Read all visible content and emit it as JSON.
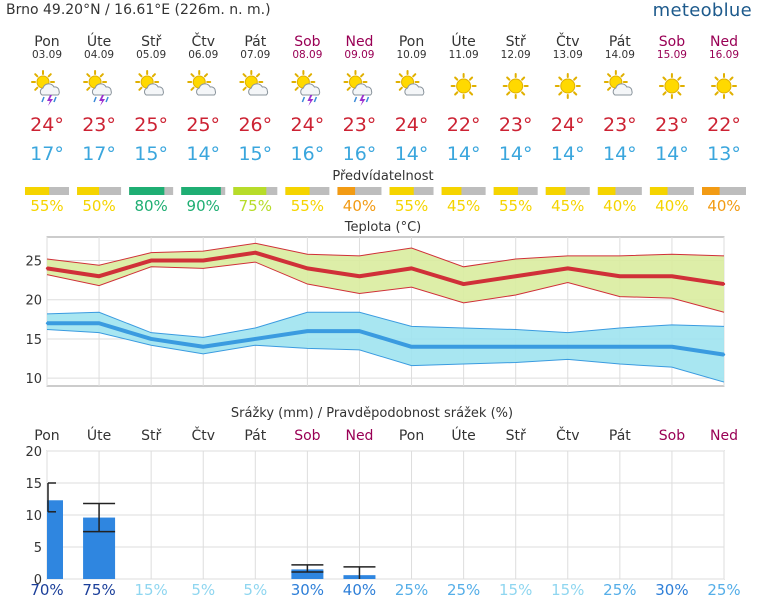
{
  "header": {
    "location": "Brno  49.20°N / 16.61°E (226m. n. m.)",
    "brand": "meteoblue"
  },
  "days": [
    {
      "name": "Pon",
      "date": "03.09",
      "weekend": false,
      "icon": "sun-cloud-thunder-rain-icon",
      "tmax": "24°",
      "tmin": "17°",
      "predictability": "55%",
      "pred_value": 55,
      "pred_color": "#f5d400",
      "precip_prob": "70%"
    },
    {
      "name": "Úte",
      "date": "04.09",
      "weekend": false,
      "icon": "sun-cloud-thunder-rain-icon",
      "tmax": "23°",
      "tmin": "17°",
      "predictability": "50%",
      "pred_value": 50,
      "pred_color": "#f5d400",
      "precip_prob": "75%"
    },
    {
      "name": "Stř",
      "date": "05.09",
      "weekend": false,
      "icon": "sun-cloud-icon",
      "tmax": "25°",
      "tmin": "15°",
      "predictability": "80%",
      "pred_value": 80,
      "pred_color": "#1fae73",
      "precip_prob": "15%"
    },
    {
      "name": "Čtv",
      "date": "06.09",
      "weekend": false,
      "icon": "sun-cloud-icon",
      "tmax": "25°",
      "tmin": "14°",
      "predictability": "90%",
      "pred_value": 90,
      "pred_color": "#1fae73",
      "precip_prob": "5%"
    },
    {
      "name": "Pát",
      "date": "07.09",
      "weekend": false,
      "icon": "sun-cloud-icon",
      "tmax": "26°",
      "tmin": "15°",
      "predictability": "75%",
      "pred_value": 75,
      "pred_color": "#b7dc2a",
      "precip_prob": "5%"
    },
    {
      "name": "Sob",
      "date": "08.09",
      "weekend": true,
      "icon": "sun-cloud-thunder-rain-icon",
      "tmax": "24°",
      "tmin": "16°",
      "predictability": "55%",
      "pred_value": 55,
      "pred_color": "#f5d400",
      "precip_prob": "30%"
    },
    {
      "name": "Ned",
      "date": "09.09",
      "weekend": true,
      "icon": "sun-cloud-thunder-rain-icon",
      "tmax": "23°",
      "tmin": "16°",
      "predictability": "40%",
      "pred_value": 40,
      "pred_color": "#f29b14",
      "precip_prob": "40%"
    },
    {
      "name": "Pon",
      "date": "10.09",
      "weekend": false,
      "icon": "sun-cloud-icon",
      "tmax": "24°",
      "tmin": "14°",
      "predictability": "55%",
      "pred_value": 55,
      "pred_color": "#f5d400",
      "precip_prob": "25%"
    },
    {
      "name": "Úte",
      "date": "11.09",
      "weekend": false,
      "icon": "sun-icon",
      "tmax": "22°",
      "tmin": "14°",
      "predictability": "45%",
      "pred_value": 45,
      "pred_color": "#f5d400",
      "precip_prob": "25%"
    },
    {
      "name": "Stř",
      "date": "12.09",
      "weekend": false,
      "icon": "sun-icon",
      "tmax": "23°",
      "tmin": "14°",
      "predictability": "55%",
      "pred_value": 55,
      "pred_color": "#f5d400",
      "precip_prob": "15%"
    },
    {
      "name": "Čtv",
      "date": "13.09",
      "weekend": false,
      "icon": "sun-icon",
      "tmax": "24°",
      "tmin": "14°",
      "predictability": "45%",
      "pred_value": 45,
      "pred_color": "#f5d400",
      "precip_prob": "15%"
    },
    {
      "name": "Pát",
      "date": "14.09",
      "weekend": false,
      "icon": "sun-cloud-icon",
      "tmax": "23°",
      "tmin": "14°",
      "predictability": "40%",
      "pred_value": 40,
      "pred_color": "#f5d400",
      "precip_prob": "25%"
    },
    {
      "name": "Sob",
      "date": "15.09",
      "weekend": true,
      "icon": "sun-icon",
      "tmax": "23°",
      "tmin": "14°",
      "predictability": "40%",
      "pred_value": 40,
      "pred_color": "#f5d400",
      "precip_prob": "30%"
    },
    {
      "name": "Ned",
      "date": "16.09",
      "weekend": true,
      "icon": "sun-icon",
      "tmax": "22°",
      "tmin": "13°",
      "predictability": "40%",
      "pred_value": 40,
      "pred_color": "#f29b14",
      "precip_prob": "25%"
    }
  ],
  "colors": {
    "tmax_text": "#cc2233",
    "tmin_text": "#3aa6dd",
    "weekend_text": "#990055",
    "temp_max_line": "#d03038",
    "temp_max_band": "#d9ec9e",
    "temp_min_line": "#3a9be0",
    "temp_min_band": "#9fe3f0",
    "precip_bar": "#2f86e0",
    "pred_rest": "#bdbdbd"
  },
  "sections": {
    "predictability_title": "Předvídatelnost",
    "temperature_title": "Teplota (°C)",
    "precip_title": "Srážky (mm) / Pravděpodobnost srážek (%)"
  },
  "chart_data": [
    {
      "type": "line",
      "title": "Teplota (°C)",
      "x": [
        "03.09",
        "04.09",
        "05.09",
        "06.09",
        "07.09",
        "08.09",
        "09.09",
        "10.09",
        "11.09",
        "12.09",
        "13.09",
        "14.09",
        "15.09",
        "16.09"
      ],
      "ylim": [
        9,
        28
      ],
      "yticks": [
        "10",
        "15",
        "20",
        "25"
      ],
      "series": [
        {
          "key": "tmax",
          "values": [
            24,
            23,
            25,
            25,
            26,
            24,
            23,
            24,
            22,
            23,
            24,
            23,
            23,
            22
          ],
          "upper": [
            25.2,
            24.4,
            26,
            26.2,
            27.2,
            25.8,
            25.6,
            26.6,
            24.2,
            25.2,
            25.6,
            25.6,
            25.8,
            25.6
          ],
          "lower": [
            23.2,
            21.8,
            24.2,
            24,
            24.8,
            22,
            20.8,
            21.6,
            19.6,
            20.6,
            22.2,
            20.4,
            20.2,
            18.4
          ]
        },
        {
          "key": "tmin",
          "values": [
            17,
            17,
            15,
            14,
            15,
            16,
            16,
            14,
            14,
            14,
            14,
            14,
            14,
            13
          ],
          "upper": [
            18.2,
            18.4,
            15.8,
            15.2,
            16.4,
            18.4,
            18.4,
            16.6,
            16.4,
            16.2,
            15.8,
            16.4,
            16.8,
            16.6
          ],
          "lower": [
            16.2,
            15.8,
            14.2,
            13.1,
            14.2,
            13.8,
            13.6,
            11.6,
            11.8,
            12,
            12.4,
            11.8,
            11.4,
            9.5
          ]
        }
      ],
      "grid": true
    },
    {
      "type": "bar",
      "title": "Srážky (mm) / Pravděpodobnost srážek (%)",
      "categories": [
        "03.09",
        "04.09",
        "05.09",
        "06.09",
        "07.09",
        "08.09",
        "09.09",
        "10.09",
        "11.09",
        "12.09",
        "13.09",
        "14.09",
        "15.09",
        "16.09"
      ],
      "values": [
        12.3,
        9.6,
        0,
        0,
        0,
        1.5,
        0.6,
        0,
        0,
        0,
        0,
        0,
        0,
        0
      ],
      "err_high": [
        15,
        11.8,
        0,
        0,
        0,
        2.2,
        1.9,
        0,
        0,
        0,
        0,
        0,
        0,
        0
      ],
      "err_low": [
        10.5,
        7.4,
        0,
        0,
        0,
        1.1,
        0,
        0,
        0,
        0,
        0,
        0,
        0,
        0
      ],
      "probability": [
        "70%",
        "75%",
        "15%",
        "5%",
        "5%",
        "30%",
        "40%",
        "25%",
        "25%",
        "15%",
        "15%",
        "25%",
        "30%",
        "25%"
      ],
      "ylim": [
        0,
        20
      ],
      "yticks": [
        "0",
        "5",
        "10",
        "15",
        "20"
      ],
      "grid": true
    }
  ]
}
